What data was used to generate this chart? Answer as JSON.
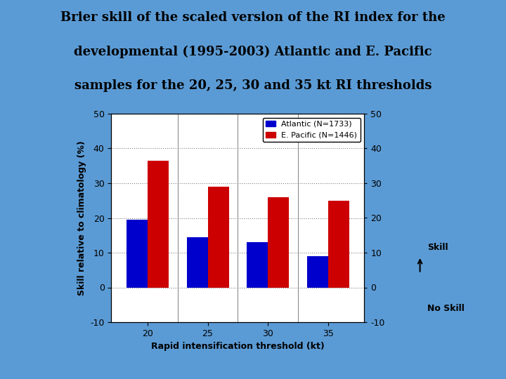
{
  "title_line1": "Brier skill of the scaled version of the RI index for the",
  "title_line2": "developmental (1995-2003) Atlantic and E. Pacific",
  "title_line3": "samples for the 20, 25, 30 and 35 kt RI thresholds",
  "categories": [
    20,
    25,
    30,
    35
  ],
  "atlantic_values": [
    19.5,
    14.5,
    13.0,
    9.0
  ],
  "epacific_values": [
    36.5,
    29.0,
    26.0,
    25.0
  ],
  "atlantic_color": "#0000cc",
  "epacific_color": "#cc0000",
  "atlantic_label": "Atlantic (N=1733)",
  "epacific_label": "E. Pacific (N=1446)",
  "ylabel": "Skill relative to climatology (%)",
  "xlabel": "Rapid intensification threshold (kt)",
  "ylim": [
    -10,
    50
  ],
  "yticks": [
    -10,
    0,
    10,
    20,
    30,
    40,
    50
  ],
  "background_color": "#5b9bd5",
  "plot_bg_color": "#ffffff",
  "skill_label": "Skill",
  "noskill_label": "No Skill",
  "bar_width": 0.35,
  "title_fontsize": 13,
  "axis_fontsize": 9,
  "legend_fontsize": 8
}
